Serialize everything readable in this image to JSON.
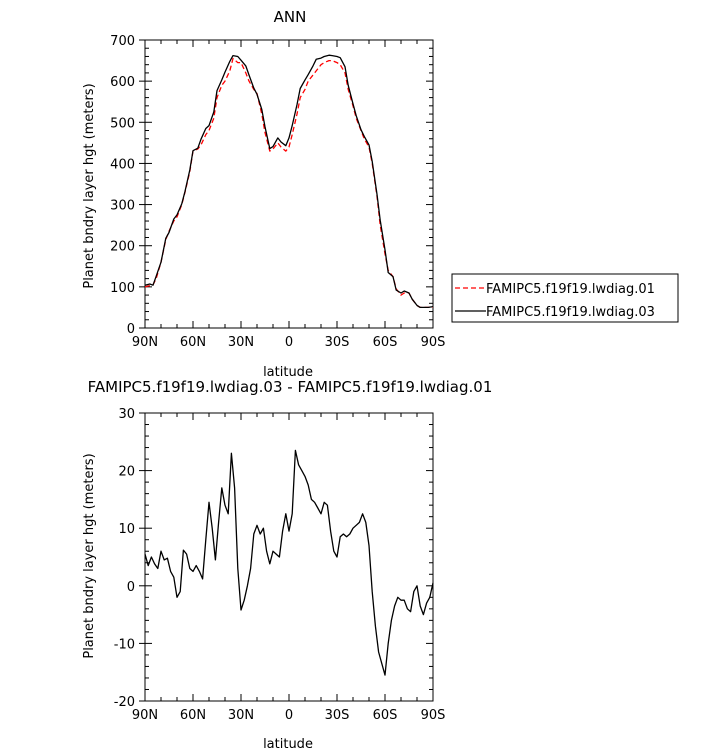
{
  "chart_data": [
    {
      "type": "line",
      "title": "ANN",
      "xlabel": "latitude",
      "ylabel": "Planet bndry layer hgt (meters)",
      "xlim": [
        -90,
        90
      ],
      "ylim": [
        0,
        700
      ],
      "x_ticks": [
        -90,
        -60,
        -30,
        0,
        30,
        60,
        90
      ],
      "x_tick_labels": [
        "90N",
        "60N",
        "30N",
        "0",
        "30S",
        "60S",
        "90S"
      ],
      "y_ticks": [
        0,
        100,
        200,
        300,
        400,
        500,
        600,
        700
      ],
      "y_tick_labels": [
        "0",
        "100",
        "200",
        "300",
        "400",
        "500",
        "600",
        "700"
      ],
      "grid": false,
      "legend": "right",
      "series": [
        {
          "name": "FAMIPC5.f19f19.lwdiag.01",
          "color": "#ff0000",
          "dash": "dashed",
          "x": [
            -90,
            -87,
            -85,
            -83,
            -80,
            -77,
            -75,
            -72,
            -70,
            -67,
            -65,
            -62,
            -60,
            -57,
            -55,
            -52,
            -50,
            -47,
            -45,
            -42,
            -40,
            -37,
            -35,
            -32,
            -30,
            -27,
            -25,
            -22,
            -20,
            -17,
            -15,
            -12,
            -10,
            -7,
            -5,
            -2,
            0,
            2,
            5,
            7,
            10,
            12,
            15,
            17,
            20,
            22,
            25,
            27,
            30,
            32,
            35,
            37,
            40,
            42,
            45,
            47,
            50,
            52,
            55,
            57,
            60,
            62,
            65,
            67,
            70,
            72,
            75,
            77,
            80,
            82,
            85,
            87,
            90
          ],
          "y": [
            100,
            103,
            105,
            120,
            160,
            215,
            235,
            260,
            270,
            300,
            330,
            380,
            430,
            435,
            445,
            470,
            480,
            510,
            560,
            590,
            600,
            625,
            655,
            645,
            645,
            620,
            600,
            580,
            570,
            520,
            475,
            430,
            435,
            450,
            440,
            430,
            440,
            470,
            520,
            560,
            580,
            600,
            615,
            625,
            640,
            645,
            650,
            650,
            645,
            640,
            620,
            580,
            540,
            510,
            480,
            460,
            440,
            400,
            320,
            250,
            180,
            140,
            125,
            95,
            80,
            85,
            85,
            70,
            55,
            50,
            50,
            50,
            50
          ]
        },
        {
          "name": "FAMIPC5.f19f19.lwdiag.03",
          "color": "#000000",
          "dash": "solid",
          "x": [
            -90,
            -87,
            -85,
            -83,
            -80,
            -77,
            -75,
            -72,
            -70,
            -67,
            -65,
            -62,
            -60,
            -57,
            -55,
            -52,
            -50,
            -47,
            -45,
            -42,
            -40,
            -37,
            -35,
            -32,
            -30,
            -27,
            -25,
            -22,
            -20,
            -17,
            -15,
            -12,
            -10,
            -7,
            -5,
            -2,
            0,
            2,
            5,
            7,
            10,
            12,
            15,
            17,
            20,
            22,
            25,
            27,
            30,
            32,
            35,
            37,
            40,
            42,
            45,
            47,
            50,
            52,
            55,
            57,
            60,
            62,
            65,
            67,
            70,
            72,
            75,
            77,
            80,
            82,
            85,
            87,
            90
          ],
          "y": [
            104,
            107,
            104,
            126,
            160,
            218,
            232,
            265,
            275,
            302,
            332,
            384,
            431,
            437,
            459,
            485,
            492,
            525,
            577,
            603,
            622,
            648,
            662,
            660,
            651,
            637,
            615,
            583,
            568,
            531,
            489,
            436,
            441,
            462,
            452,
            443,
            462,
            492,
            543,
            582,
            603,
            616,
            637,
            653,
            656,
            660,
            663,
            662,
            660,
            657,
            635,
            590,
            545,
            516,
            482,
            466,
            445,
            405,
            325,
            262,
            190,
            135,
            125,
            92,
            85,
            90,
            85,
            70,
            55,
            50,
            50,
            50,
            52
          ]
        }
      ]
    },
    {
      "type": "line",
      "title": "FAMIPC5.f19f19.lwdiag.03 - FAMIPC5.f19f19.lwdiag.01",
      "xlabel": "latitude",
      "ylabel": "Planet bndry layer hgt (meters)",
      "xlim": [
        -90,
        90
      ],
      "ylim": [
        -20,
        30
      ],
      "x_ticks": [
        -90,
        -60,
        -30,
        0,
        30,
        60,
        90
      ],
      "x_tick_labels": [
        "90N",
        "60N",
        "30N",
        "0",
        "30S",
        "60S",
        "90S"
      ],
      "y_ticks": [
        -20,
        -10,
        0,
        10,
        20,
        30
      ],
      "y_tick_labels": [
        "-20",
        "-10",
        "0",
        "10",
        "20",
        "30"
      ],
      "grid": false,
      "series": [
        {
          "color": "#000000",
          "dash": "solid",
          "x": [
            -90,
            -88,
            -86,
            -84,
            -82,
            -80,
            -78,
            -76,
            -74,
            -72,
            -70,
            -68,
            -66,
            -64,
            -62,
            -60,
            -58,
            -56,
            -54,
            -52,
            -50,
            -48,
            -46,
            -44,
            -42,
            -40,
            -38,
            -36,
            -34,
            -32,
            -30,
            -28,
            -26,
            -24,
            -22,
            -20,
            -18,
            -16,
            -14,
            -12,
            -10,
            -8,
            -6,
            -4,
            -2,
            0,
            2,
            4,
            6,
            8,
            10,
            12,
            14,
            16,
            18,
            20,
            22,
            24,
            26,
            28,
            30,
            32,
            34,
            36,
            38,
            40,
            42,
            44,
            46,
            48,
            50,
            52,
            54,
            56,
            58,
            60,
            62,
            64,
            66,
            68,
            70,
            72,
            74,
            76,
            78,
            80,
            82,
            84,
            86,
            88,
            90
          ],
          "y": [
            5.5,
            3.5,
            5.0,
            3.8,
            3.0,
            6.0,
            4.5,
            4.8,
            2.5,
            1.5,
            -2.0,
            -1.0,
            6.2,
            5.5,
            3.0,
            2.5,
            3.5,
            2.5,
            1.2,
            8.0,
            14.5,
            10.0,
            4.5,
            11.0,
            17.0,
            14.0,
            12.5,
            23.0,
            17.0,
            3.0,
            -4.2,
            -2.5,
            0.0,
            3.0,
            9.0,
            10.5,
            9.0,
            10.0,
            6.0,
            3.8,
            6.0,
            5.5,
            5.0,
            9.5,
            12.5,
            9.5,
            12.5,
            23.5,
            21.0,
            20.0,
            19.0,
            17.5,
            15.0,
            14.5,
            13.5,
            12.5,
            14.5,
            14.0,
            9.5,
            6.0,
            5.0,
            8.5,
            9.0,
            8.5,
            9.0,
            10.0,
            10.5,
            11.0,
            12.5,
            11.0,
            7.0,
            -1.0,
            -7.0,
            -11.5,
            -13.5,
            -15.5,
            -10.0,
            -6.0,
            -3.5,
            -2.0,
            -2.5,
            -2.5,
            -4.0,
            -4.5,
            -1.0,
            0.0,
            -3.5,
            -5.0,
            -3.0,
            -2.0,
            0.5
          ]
        }
      ]
    }
  ]
}
